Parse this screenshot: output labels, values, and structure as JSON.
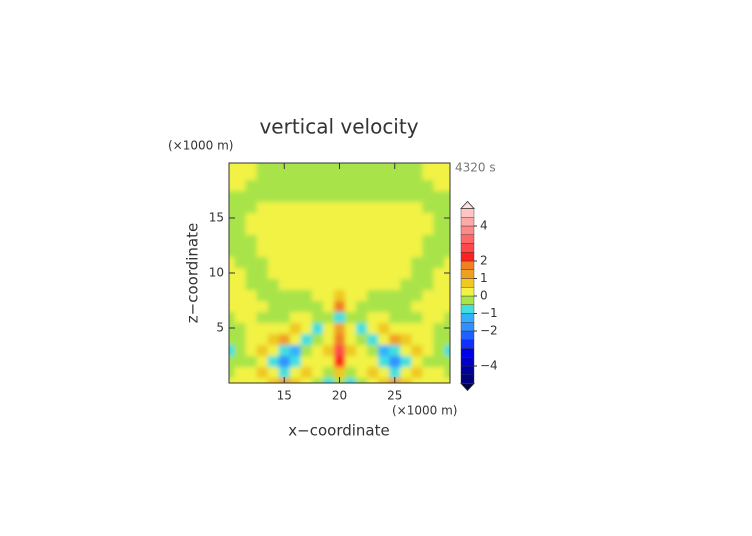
{
  "chart_data": {
    "type": "contour",
    "title": "vertical velocity",
    "time_label": "4320 s",
    "xlabel": "x−coordinate",
    "ylabel": "z−coordinate",
    "x_unit": "(×1000 m)",
    "y_unit": "(×1000 m)",
    "xlim": [
      10,
      30
    ],
    "ylim": [
      0,
      20
    ],
    "xticks": [
      15,
      20,
      25
    ],
    "yticks": [
      5,
      10,
      15
    ],
    "x": [
      10,
      11,
      12,
      13,
      14,
      15,
      16,
      17,
      18,
      19,
      20,
      21,
      22,
      23,
      24,
      25,
      26,
      27,
      28,
      29,
      30
    ],
    "y": [
      0,
      1,
      2,
      3,
      4,
      5,
      6,
      7,
      8,
      9,
      10,
      11,
      12,
      13,
      14,
      15,
      16,
      17,
      18,
      19,
      20
    ],
    "z": [
      [
        0.2,
        0.2,
        0.2,
        0.2,
        0.7,
        1.2,
        0.7,
        0.2,
        -0.2,
        -0.7,
        -0.2,
        -0.7,
        -0.2,
        0.2,
        0.7,
        1.2,
        0.7,
        0.2,
        0.2,
        0.2,
        0.2
      ],
      [
        -0.2,
        0.2,
        0.2,
        0.7,
        0.2,
        -0.7,
        0.2,
        0.7,
        0.2,
        -0.2,
        0.7,
        -0.2,
        0.2,
        0.7,
        0.2,
        -0.7,
        0.2,
        0.7,
        0.2,
        0.2,
        -0.2
      ],
      [
        -0.2,
        -0.2,
        -0.2,
        0.2,
        -0.7,
        -1.6,
        -0.7,
        0.2,
        0.2,
        0.2,
        2.2,
        0.2,
        0.2,
        0.2,
        -0.7,
        -1.6,
        -0.7,
        0.2,
        -0.2,
        -0.2,
        -0.2
      ],
      [
        -0.7,
        -0.2,
        0.2,
        0.7,
        0.2,
        -0.7,
        -1.3,
        -0.2,
        0.2,
        0.7,
        2.8,
        0.7,
        0.2,
        -0.2,
        -1.3,
        -0.7,
        0.2,
        0.7,
        0.2,
        -0.2,
        -0.7
      ],
      [
        -0.2,
        -0.2,
        0.2,
        0.2,
        0.7,
        1.2,
        0.2,
        -0.7,
        -0.2,
        0.2,
        1.8,
        0.2,
        -0.2,
        -0.7,
        0.2,
        1.2,
        0.7,
        0.2,
        0.2,
        -0.2,
        -0.2
      ],
      [
        -0.2,
        -0.2,
        0.2,
        0.2,
        0.2,
        0.2,
        0.7,
        0.2,
        -0.7,
        0.2,
        1.2,
        0.2,
        -0.7,
        0.2,
        0.7,
        0.2,
        0.2,
        0.2,
        0.2,
        -0.2,
        -0.2
      ],
      [
        -0.2,
        0.2,
        0.2,
        -0.2,
        -0.2,
        -0.2,
        0.2,
        0.2,
        -0.2,
        -0.2,
        -0.7,
        -0.2,
        -0.2,
        0.2,
        0.2,
        -0.2,
        -0.2,
        -0.2,
        0.2,
        0.2,
        -0.2
      ],
      [
        0.2,
        0.2,
        0.2,
        0.2,
        -0.2,
        -0.2,
        -0.2,
        -0.2,
        -0.2,
        0.2,
        1.8,
        0.2,
        -0.2,
        -0.2,
        -0.2,
        -0.2,
        -0.2,
        0.2,
        0.2,
        0.2,
        0.2
      ],
      [
        0.2,
        0.2,
        0.2,
        -0.2,
        -0.2,
        -0.2,
        -0.2,
        -0.2,
        0.2,
        0.2,
        0.7,
        0.2,
        0.2,
        -0.2,
        -0.2,
        -0.2,
        -0.2,
        -0.2,
        0.2,
        0.2,
        0.2
      ],
      [
        0.2,
        0.2,
        -0.2,
        -0.2,
        -0.2,
        0.2,
        0.2,
        0.2,
        0.2,
        0.2,
        0.2,
        0.2,
        0.2,
        0.2,
        0.2,
        0.2,
        -0.2,
        -0.2,
        -0.2,
        0.2,
        0.2
      ],
      [
        0.2,
        0.2,
        -0.2,
        -0.2,
        0.2,
        0.2,
        0.2,
        0.2,
        0.2,
        0.2,
        0.2,
        0.2,
        0.2,
        0.2,
        0.2,
        0.2,
        0.2,
        -0.2,
        -0.2,
        0.2,
        0.2
      ],
      [
        0.2,
        -0.2,
        -0.2,
        -0.2,
        0.2,
        0.2,
        0.2,
        0.2,
        0.2,
        0.2,
        0.2,
        0.2,
        0.2,
        0.2,
        0.2,
        0.2,
        0.2,
        -0.2,
        -0.2,
        -0.2,
        0.2
      ],
      [
        -0.2,
        -0.2,
        -0.2,
        0.2,
        0.2,
        0.2,
        0.2,
        0.2,
        0.2,
        0.2,
        0.2,
        0.2,
        0.2,
        0.2,
        0.2,
        0.2,
        0.2,
        0.2,
        -0.2,
        -0.2,
        -0.2
      ],
      [
        -0.2,
        -0.2,
        -0.2,
        0.2,
        0.2,
        0.2,
        0.2,
        0.2,
        0.2,
        0.2,
        0.2,
        0.2,
        0.2,
        0.2,
        0.2,
        0.2,
        0.2,
        0.2,
        -0.2,
        -0.2,
        -0.2
      ],
      [
        -0.2,
        -0.2,
        0.2,
        0.2,
        0.2,
        0.2,
        0.2,
        0.2,
        0.2,
        0.2,
        0.2,
        0.2,
        0.2,
        0.2,
        0.2,
        0.2,
        0.2,
        0.2,
        0.2,
        -0.2,
        -0.2
      ],
      [
        -0.2,
        -0.2,
        0.2,
        0.2,
        0.2,
        0.2,
        0.2,
        0.2,
        0.2,
        0.2,
        0.2,
        0.2,
        0.2,
        0.2,
        0.2,
        0.2,
        0.2,
        0.2,
        0.2,
        -0.2,
        -0.2
      ],
      [
        -0.2,
        -0.2,
        -0.2,
        0.2,
        0.2,
        0.2,
        0.2,
        0.2,
        0.2,
        0.2,
        0.2,
        0.2,
        0.2,
        0.2,
        0.2,
        0.2,
        0.2,
        0.2,
        -0.2,
        -0.2,
        -0.2
      ],
      [
        -0.2,
        -0.2,
        -0.2,
        -0.2,
        -0.2,
        -0.2,
        -0.2,
        -0.2,
        -0.2,
        -0.2,
        -0.2,
        -0.2,
        -0.2,
        -0.2,
        -0.2,
        -0.2,
        -0.2,
        -0.2,
        -0.2,
        -0.2,
        -0.2
      ],
      [
        0.2,
        0.2,
        -0.2,
        -0.2,
        -0.2,
        -0.2,
        -0.2,
        -0.2,
        -0.2,
        -0.2,
        -0.2,
        -0.2,
        -0.2,
        -0.2,
        -0.2,
        -0.2,
        -0.2,
        -0.2,
        -0.2,
        0.2,
        0.2
      ],
      [
        0.2,
        0.2,
        0.2,
        -0.2,
        -0.2,
        -0.2,
        -0.2,
        -0.2,
        -0.2,
        -0.2,
        -0.2,
        -0.2,
        -0.2,
        -0.2,
        -0.2,
        -0.2,
        -0.2,
        -0.2,
        0.2,
        0.2,
        0.2
      ],
      [
        0.2,
        0.2,
        0.2,
        -0.2,
        -0.2,
        -0.2,
        -0.2,
        -0.2,
        -0.2,
        -0.2,
        -0.2,
        -0.2,
        -0.2,
        -0.2,
        -0.2,
        -0.2,
        -0.2,
        -0.2,
        0.2,
        0.2,
        0.2
      ]
    ],
    "levels": [
      -5,
      -4.5,
      -4,
      -3.5,
      -3,
      -2.5,
      -2,
      -1.5,
      -1,
      -0.5,
      0,
      0.5,
      1,
      1.5,
      2,
      2.5,
      3,
      3.5,
      4,
      4.5,
      5
    ],
    "colors": [
      "#000080",
      "#0000a0",
      "#0000c8",
      "#0000e6",
      "#1030ff",
      "#2060ff",
      "#3090ff",
      "#30b0ff",
      "#40e0e0",
      "#a8e448",
      "#f2f244",
      "#f0c820",
      "#f0a020",
      "#f08020",
      "#ff2020",
      "#ff4848",
      "#ff6868",
      "#ff8888",
      "#ffa8a8",
      "#ffc4c4"
    ],
    "under_color": "#000040",
    "over_color": "#ffe0e0",
    "colorbar_ticks": [
      4,
      2,
      1,
      0,
      {
        "value": -1,
        "label": "−1"
      },
      {
        "value": -2,
        "label": "−2"
      },
      {
        "value": -4,
        "label": "−4"
      }
    ]
  }
}
